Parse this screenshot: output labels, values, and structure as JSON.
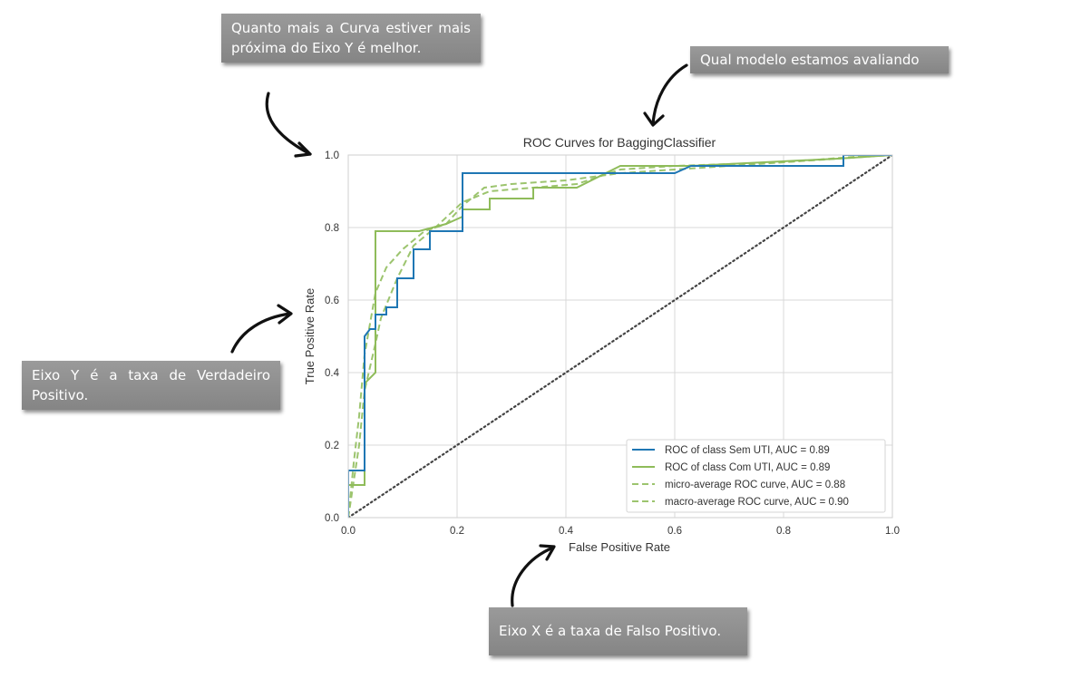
{
  "annotations": {
    "curve_closer_y": "Quanto mais a Curva estiver mais próxima do Eixo Y é melhor.",
    "which_model": "Qual modelo estamos avaliando",
    "y_axis_meaning": "Eixo Y é a taxa de Verdadeiro Positivo.",
    "x_axis_meaning": "Eixo X é a taxa de Falso Positivo."
  },
  "colors": {
    "class_sem_uti": "#1f77b4",
    "class_com_uti": "#8fbc5a",
    "micro": "#9cc46e",
    "macro": "#9cc46e",
    "chance": "#444444",
    "grid": "#d9d9d9",
    "callout": "#8c8c8c"
  },
  "chart_data": {
    "type": "line",
    "title": "ROC Curves for BaggingClassifier",
    "xlabel": "False Positive Rate",
    "ylabel": "True Positive Rate",
    "xlim": [
      0.0,
      1.0
    ],
    "ylim": [
      0.0,
      1.0
    ],
    "x_ticks": [
      "0.0",
      "0.2",
      "0.4",
      "0.6",
      "0.8",
      "1.0"
    ],
    "y_ticks": [
      "0.0",
      "0.2",
      "0.4",
      "0.6",
      "0.8",
      "1.0"
    ],
    "grid": true,
    "legend_position": "lower-right",
    "chance_line": {
      "x": [
        0,
        1
      ],
      "y": [
        0,
        1
      ],
      "style": "dotted"
    },
    "series": [
      {
        "name": "ROC of class Sem UTI, AUC = 0.89",
        "style": "solid",
        "x": [
          0.0,
          0.0,
          0.03,
          0.03,
          0.04,
          0.05,
          0.05,
          0.07,
          0.07,
          0.09,
          0.09,
          0.12,
          0.12,
          0.15,
          0.15,
          0.21,
          0.21,
          0.46,
          0.46,
          0.6,
          0.63,
          0.91,
          0.91,
          1.0
        ],
        "y": [
          0.0,
          0.13,
          0.13,
          0.5,
          0.52,
          0.52,
          0.56,
          0.56,
          0.58,
          0.58,
          0.66,
          0.66,
          0.74,
          0.74,
          0.79,
          0.79,
          0.95,
          0.95,
          0.95,
          0.95,
          0.97,
          0.97,
          1.0,
          1.0
        ]
      },
      {
        "name": "ROC of class Com UTI, AUC = 0.89",
        "style": "solid",
        "x": [
          0.0,
          0.0,
          0.03,
          0.03,
          0.05,
          0.05,
          0.13,
          0.18,
          0.21,
          0.21,
          0.26,
          0.26,
          0.34,
          0.34,
          0.42,
          0.5,
          0.63,
          0.9,
          1.0
        ],
        "y": [
          0.0,
          0.09,
          0.09,
          0.37,
          0.4,
          0.79,
          0.79,
          0.81,
          0.83,
          0.85,
          0.85,
          0.88,
          0.88,
          0.91,
          0.91,
          0.97,
          0.97,
          0.99,
          1.0
        ]
      },
      {
        "name": "micro-average ROC curve, AUC = 0.88",
        "style": "dashed",
        "x": [
          0.0,
          0.01,
          0.02,
          0.03,
          0.05,
          0.07,
          0.1,
          0.14,
          0.18,
          0.21,
          0.25,
          0.3,
          0.4,
          0.5,
          0.6,
          0.7,
          0.8,
          0.9,
          1.0
        ],
        "y": [
          0.0,
          0.15,
          0.28,
          0.45,
          0.62,
          0.69,
          0.74,
          0.79,
          0.81,
          0.86,
          0.91,
          0.92,
          0.93,
          0.95,
          0.96,
          0.97,
          0.98,
          0.99,
          1.0
        ]
      },
      {
        "name": "macro-average ROC curve, AUC = 0.90",
        "style": "dashed",
        "x": [
          0.0,
          0.01,
          0.02,
          0.03,
          0.05,
          0.06,
          0.09,
          0.12,
          0.16,
          0.21,
          0.26,
          0.34,
          0.42,
          0.5,
          0.6,
          0.7,
          0.8,
          0.93,
          1.0
        ],
        "y": [
          0.0,
          0.1,
          0.2,
          0.35,
          0.48,
          0.55,
          0.66,
          0.75,
          0.8,
          0.87,
          0.9,
          0.91,
          0.92,
          0.96,
          0.97,
          0.975,
          0.98,
          0.995,
          1.0
        ]
      }
    ]
  }
}
